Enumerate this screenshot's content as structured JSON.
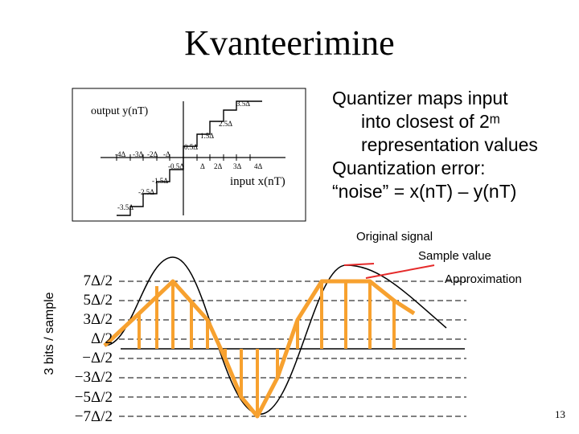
{
  "title": "Kvanteerimine",
  "quantizer": {
    "output_label": "output  y(nT)",
    "input_label": "input x(nT)",
    "level_labels": [
      "3.5Δ",
      "2.5Δ",
      "1.5Δ",
      "0.5Δ",
      "-0.5Δ",
      "-1.5Δ",
      "-2.5Δ",
      "-3.5Δ"
    ],
    "x_labels_neg": [
      "-4Δ",
      "-3Δ",
      "-2Δ",
      "-Δ"
    ],
    "x_labels_pos": [
      "Δ",
      "2Δ",
      "3Δ",
      "4Δ"
    ]
  },
  "bullets": {
    "line1": "Quantizer maps input",
    "line2": "into closest of 2ᵐ",
    "line3": "representation values",
    "line4": "Quantization error:",
    "line5": "“noise” = x(nT) – y(nT)"
  },
  "annotations": {
    "original_signal": "Original signal",
    "sample_value": "Sample value",
    "approximation": "Approximation"
  },
  "bits_label": "3 bits / sample",
  "levels": [
    "7Δ/2",
    "5Δ/2",
    "3Δ/2",
    "Δ/2",
    "−Δ/2",
    "−3Δ/2",
    "−5Δ/2",
    "−7Δ/2"
  ],
  "page_number": "13",
  "colors": {
    "approximation": "#F7A12F",
    "signal": "#000000"
  }
}
